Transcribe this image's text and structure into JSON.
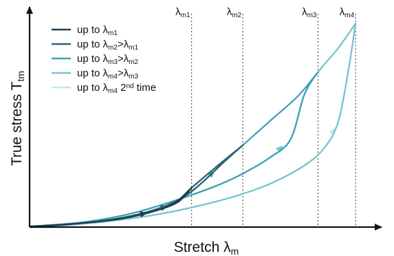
{
  "chart_data": {
    "type": "line",
    "title": "",
    "xlabel": {
      "main": "Stretch λ",
      "sub": "m"
    },
    "ylabel": {
      "main": "True stress T",
      "sub": "tm"
    },
    "xlim": [
      0,
      10
    ],
    "ylim": [
      0,
      10
    ],
    "grid": false,
    "legend_position": "top-left",
    "vlines": [
      {
        "x": 4.7,
        "label_main": "λ",
        "label_sub": "m1"
      },
      {
        "x": 6.2,
        "label_main": "λ",
        "label_sub": "m2"
      },
      {
        "x": 8.4,
        "label_main": "λ",
        "label_sub": "m3"
      },
      {
        "x": 9.5,
        "label_main": "λ",
        "label_sub": "m4"
      }
    ],
    "series": [
      {
        "name": [
          [
            "up to λ",
            ""
          ],
          [
            "m1",
            "sub"
          ]
        ],
        "color": "#1f3d4d",
        "load": [
          [
            0,
            0
          ],
          [
            1.2,
            0.12
          ],
          [
            2.5,
            0.35
          ],
          [
            3.5,
            0.7
          ],
          [
            4.2,
            1.15
          ],
          [
            4.7,
            1.9
          ]
        ],
        "unload": [
          [
            4.7,
            1.9
          ],
          [
            4.3,
            1.2
          ],
          [
            3.6,
            0.75
          ],
          [
            2.6,
            0.37
          ],
          [
            1.2,
            0.12
          ],
          [
            0,
            0
          ]
        ],
        "arrows": [
          {
            "x": 3.3,
            "dir": "right"
          }
        ]
      },
      {
        "name": [
          [
            "up to λ",
            ""
          ],
          [
            "m2",
            "sub"
          ],
          [
            ">λ",
            ""
          ],
          [
            "m1",
            "sub"
          ]
        ],
        "color": "#2e6475",
        "load": [
          [
            0,
            0
          ],
          [
            1.2,
            0.12
          ],
          [
            2.5,
            0.35
          ],
          [
            3.5,
            0.7
          ],
          [
            4.2,
            1.15
          ],
          [
            4.7,
            1.9
          ],
          [
            5.4,
            2.9
          ],
          [
            6.2,
            4.0
          ]
        ],
        "unload": [
          [
            6.2,
            4.0
          ],
          [
            5.6,
            3.1
          ],
          [
            5.1,
            2.3
          ],
          [
            4.6,
            1.6
          ],
          [
            4.0,
            1.05
          ],
          [
            3.2,
            0.62
          ],
          [
            2.2,
            0.3
          ],
          [
            1.0,
            0.09
          ],
          [
            0,
            0
          ]
        ],
        "arrows": [
          {
            "x": 3.9,
            "dir": "right"
          }
        ]
      },
      {
        "name": [
          [
            "up to λ",
            ""
          ],
          [
            "m3",
            "sub"
          ],
          [
            ">λ",
            ""
          ],
          [
            "m2",
            "sub"
          ]
        ],
        "color": "#3ea3b4",
        "load": [
          [
            0,
            0
          ],
          [
            1.0,
            0.09
          ],
          [
            2.2,
            0.3
          ],
          [
            3.2,
            0.62
          ],
          [
            4.0,
            1.05
          ],
          [
            4.6,
            1.6
          ],
          [
            5.1,
            2.3
          ],
          [
            5.6,
            3.1
          ],
          [
            6.2,
            4.0
          ],
          [
            7.0,
            5.2
          ],
          [
            7.8,
            6.4
          ],
          [
            8.4,
            7.6
          ]
        ],
        "unload": [
          [
            8.4,
            7.6
          ],
          [
            8.0,
            6.5
          ],
          [
            7.6,
            4.3
          ],
          [
            7.0,
            3.4
          ],
          [
            6.2,
            2.6
          ],
          [
            5.5,
            2.05
          ],
          [
            4.7,
            1.55
          ],
          [
            3.8,
            1.05
          ],
          [
            2.8,
            0.58
          ],
          [
            1.5,
            0.2
          ],
          [
            0,
            0
          ]
        ],
        "arrows": [
          {
            "x": 5.3,
            "dir": "up-right"
          }
        ]
      },
      {
        "name": [
          [
            "up to λ",
            ""
          ],
          [
            "m4",
            "sub"
          ],
          [
            ">λ",
            ""
          ],
          [
            "m3",
            "sub"
          ]
        ],
        "color": "#79c3cf",
        "load": [
          [
            0,
            0
          ],
          [
            1.5,
            0.2
          ],
          [
            2.8,
            0.58
          ],
          [
            3.8,
            1.05
          ],
          [
            4.7,
            1.55
          ],
          [
            5.5,
            2.05
          ],
          [
            6.2,
            2.6
          ],
          [
            7.0,
            3.4
          ],
          [
            7.6,
            4.3
          ],
          [
            8.0,
            6.5
          ],
          [
            8.4,
            7.6
          ],
          [
            9.0,
            8.8
          ],
          [
            9.5,
            10.0
          ]
        ],
        "unload": [
          [
            9.5,
            10.0
          ],
          [
            9.3,
            7.8
          ],
          [
            9.0,
            5.2
          ],
          [
            8.6,
            3.9
          ],
          [
            8.0,
            3.0
          ],
          [
            7.0,
            2.1
          ],
          [
            6.0,
            1.5
          ],
          [
            5.0,
            1.05
          ],
          [
            3.8,
            0.62
          ],
          [
            2.4,
            0.28
          ],
          [
            1.0,
            0.06
          ],
          [
            0,
            0
          ]
        ],
        "arrows": [
          {
            "x": 7.3,
            "dir": "up"
          }
        ]
      },
      {
        "name": [
          [
            "up to λ",
            ""
          ],
          [
            "m4",
            "sub"
          ],
          [
            " 2",
            ""
          ],
          [
            "nd",
            "sup"
          ],
          [
            " time",
            ""
          ]
        ],
        "color": "#c3e8ee",
        "load": [
          [
            0,
            0
          ],
          [
            1.0,
            0.06
          ],
          [
            2.4,
            0.28
          ],
          [
            3.8,
            0.62
          ],
          [
            5.0,
            1.05
          ],
          [
            6.0,
            1.5
          ],
          [
            7.0,
            2.1
          ],
          [
            8.0,
            3.0
          ],
          [
            8.6,
            3.9
          ],
          [
            9.0,
            5.2
          ],
          [
            9.3,
            7.8
          ],
          [
            9.5,
            10.0
          ]
        ],
        "unload": [],
        "arrows": [
          {
            "x": 8.85,
            "dir": "up"
          }
        ]
      }
    ]
  }
}
